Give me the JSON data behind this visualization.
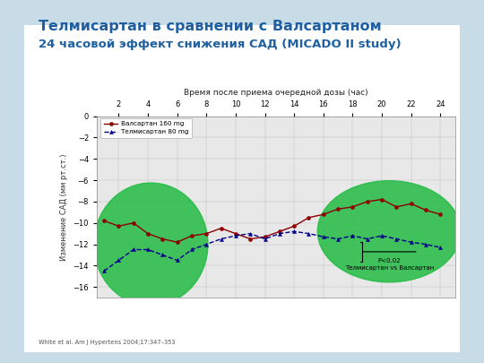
{
  "title_line1": "Телмисартан в сравнении с Валсартаном",
  "title_line2": "24 часовой эффект снижения САД (MICADO II study)",
  "xlabel": "Время после приема очередной дозы (час)",
  "ylabel": "Изменение САД (мм рт.ст.)",
  "citation": "White et al. Am J Hypertens 2004;17:347–353",
  "legend_valsartan": "Валсартан 160 mg",
  "legend_telmisartan": "Телмисартан 80 mg",
  "annotation_text": "P<0.02\nТелмисартан vs Валсартан",
  "x_valsartan": [
    1,
    2,
    3,
    4,
    5,
    6,
    7,
    8,
    9,
    10,
    11,
    12,
    13,
    14,
    15,
    16,
    17,
    18,
    19,
    20,
    21,
    22,
    23,
    24
  ],
  "y_valsartan": [
    -9.8,
    -10.3,
    -10.0,
    -11.0,
    -11.5,
    -11.8,
    -11.2,
    -11.0,
    -10.5,
    -11.0,
    -11.5,
    -11.3,
    -10.8,
    -10.3,
    -9.5,
    -9.2,
    -8.7,
    -8.5,
    -8.0,
    -7.8,
    -8.5,
    -8.2,
    -8.8,
    -9.2
  ],
  "x_telmisartan": [
    1,
    2,
    3,
    4,
    5,
    6,
    7,
    8,
    9,
    10,
    11,
    12,
    13,
    14,
    15,
    16,
    17,
    18,
    19,
    20,
    21,
    22,
    23,
    24
  ],
  "y_telmisartan": [
    -14.5,
    -13.5,
    -12.5,
    -12.5,
    -13.0,
    -13.5,
    -12.5,
    -12.0,
    -11.5,
    -11.2,
    -11.0,
    -11.5,
    -11.0,
    -10.8,
    -11.0,
    -11.3,
    -11.5,
    -11.2,
    -11.5,
    -11.2,
    -11.5,
    -11.8,
    -12.0,
    -12.3
  ],
  "color_valsartan": "#8B0000",
  "color_telmisartan": "#00008B",
  "ylim": [
    -17,
    0
  ],
  "yticks": [
    0,
    -2,
    -4,
    -6,
    -8,
    -10,
    -12,
    -14,
    -16
  ],
  "xticks": [
    2,
    4,
    6,
    8,
    10,
    12,
    14,
    16,
    18,
    20,
    22,
    24
  ],
  "slide_bg": "#c8dce8",
  "plot_area_bg": "#ffffff",
  "inner_plot_bg": "#e8e8e8",
  "title_color": "#2060a0",
  "title_fontsize": 11.5,
  "subtitle_fontsize": 9.5,
  "circle_color": "#22bb44"
}
